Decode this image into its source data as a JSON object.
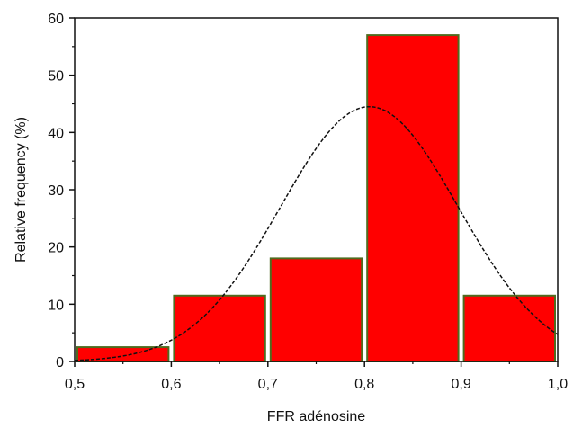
{
  "chart_data": {
    "type": "bar",
    "title": "",
    "xlabel": "FFR adénosine",
    "ylabel": "Relative frequency (%)",
    "xlim": [
      0.5,
      1.0
    ],
    "ylim": [
      0,
      60
    ],
    "x_ticks": [
      0.5,
      0.6,
      0.7,
      0.8,
      0.9,
      1.0
    ],
    "x_tick_labels": [
      "0,5",
      "0,6",
      "0,7",
      "0,8",
      "0,9",
      "1,0"
    ],
    "y_ticks": [
      0,
      10,
      20,
      30,
      40,
      50,
      60
    ],
    "y_tick_labels": [
      "0",
      "10",
      "20",
      "30",
      "40",
      "50",
      "60"
    ],
    "bins": [
      {
        "start": 0.5,
        "end": 0.6,
        "value": 2.5
      },
      {
        "start": 0.6,
        "end": 0.7,
        "value": 11.5
      },
      {
        "start": 0.7,
        "end": 0.8,
        "value": 18
      },
      {
        "start": 0.8,
        "end": 0.9,
        "value": 57
      },
      {
        "start": 0.9,
        "end": 1.0,
        "value": 11.5
      }
    ],
    "fit_curve": {
      "type": "normal",
      "mean": 0.805,
      "sd": 0.092,
      "peak": 44.5,
      "style": "dashed"
    },
    "grid": false,
    "legend": "none",
    "colors": {
      "bar_fill": "#ff0000",
      "bar_edge": "#4f6b1f",
      "curve": "#111111",
      "axis": "#111111"
    }
  }
}
